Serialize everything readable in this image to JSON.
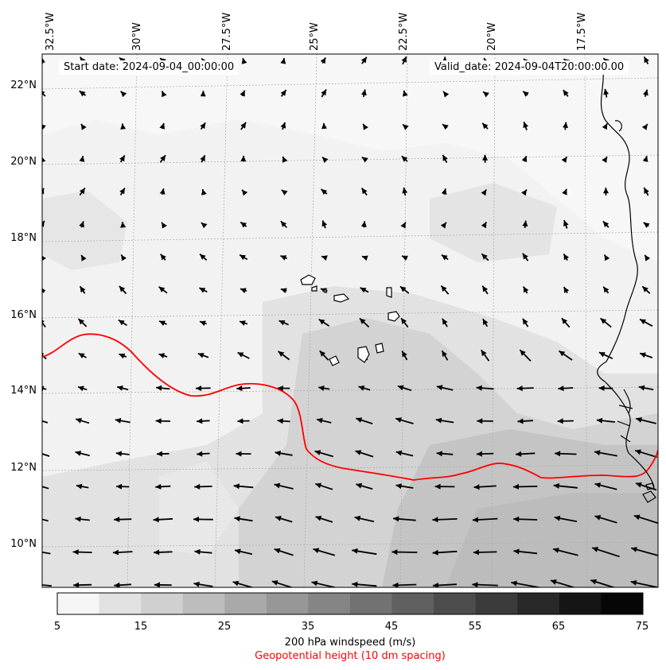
{
  "map": {
    "region": "Eastern Atlantic / Cape Verde Islands / West Africa coast",
    "lon_labels": [
      "32.5°W",
      "30°W",
      "27.5°W",
      "25°W",
      "22.5°W",
      "20°W",
      "17.5°W"
    ],
    "lat_labels": [
      "22°N",
      "20°N",
      "18°N",
      "16°N",
      "14°N",
      "12°N",
      "10°N"
    ],
    "start_date_text": "Start date: 2024-09-04_00:00:00",
    "valid_date_text": "Valid_date: 2024-09-04T20:00:00.00",
    "wind_vectors": "easterly to east-northeasterly flow, stronger in the south",
    "contour_color": "#ff0000",
    "coastline_color": "#000000"
  },
  "colorbar": {
    "ticks": [
      "5",
      "15",
      "25",
      "35",
      "45",
      "55",
      "65",
      "75"
    ],
    "colors": [
      "#f5f5f5",
      "#e1e1e1",
      "#d0d0d0",
      "#bdbdbd",
      "#a9a9a9",
      "#979797",
      "#858585",
      "#727272",
      "#606060",
      "#4d4d4d",
      "#3b3b3b",
      "#282828",
      "#151515",
      "#060606"
    ],
    "title": "200 hPa windspeed (m/s)",
    "subtitle": "Geopotential height (10 dm spacing)",
    "subtitle_color": "#ff0000"
  }
}
